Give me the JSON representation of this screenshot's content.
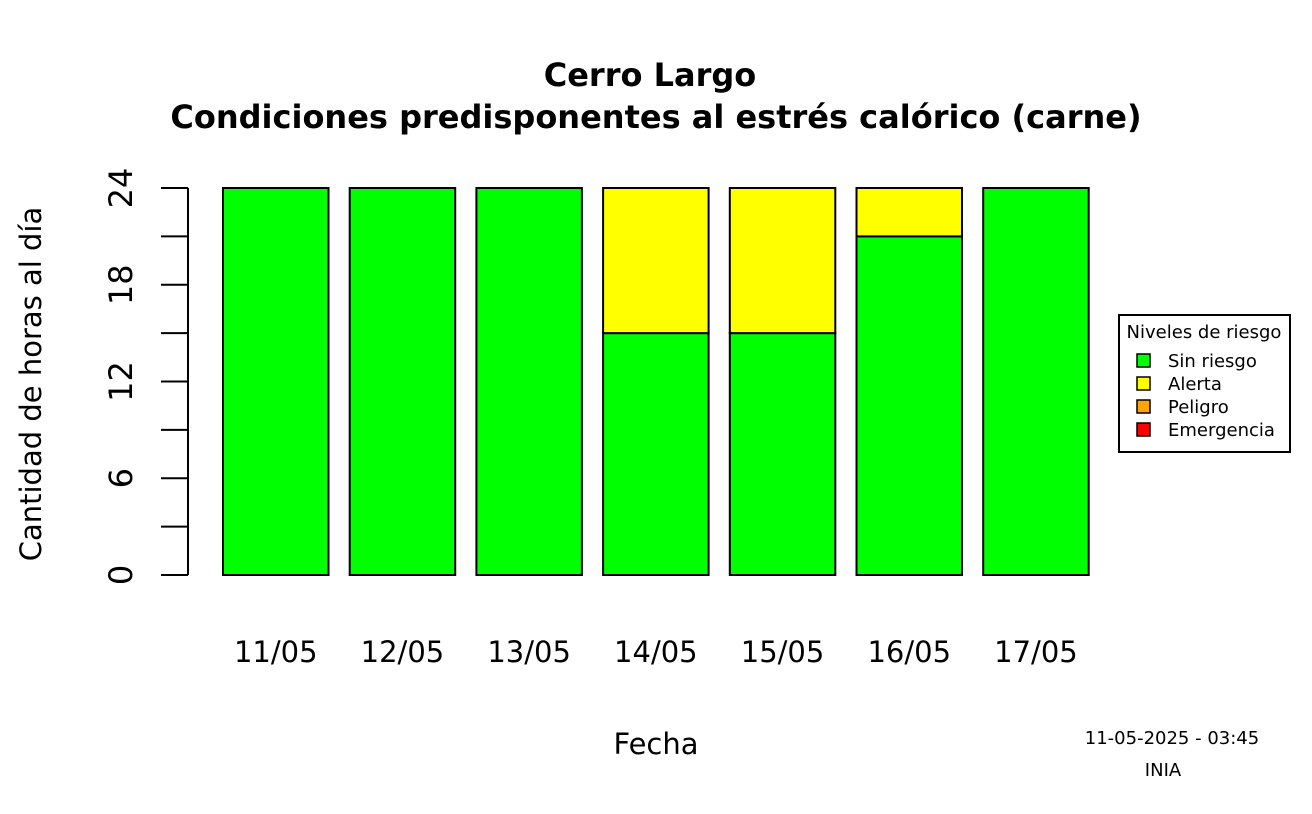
{
  "chart_data": {
    "type": "bar",
    "stacked": true,
    "title": "Cerro Largo",
    "subtitle": "Condiciones predisponentes al estrés calórico (carne)",
    "xlabel": "Fecha",
    "ylabel": "Cantidad de horas al día",
    "ylim": [
      0,
      24
    ],
    "yticks": [
      0,
      6,
      12,
      18,
      24
    ],
    "yminor_ticks": [
      3,
      9,
      15,
      21
    ],
    "categories": [
      "11/05",
      "12/05",
      "13/05",
      "14/05",
      "15/05",
      "16/05",
      "17/05"
    ],
    "series": [
      {
        "name": "Sin riesgo",
        "color": "#00ff00",
        "values": [
          24,
          24,
          24,
          15,
          15,
          21,
          24
        ]
      },
      {
        "name": "Alerta",
        "color": "#ffff00",
        "values": [
          0,
          0,
          0,
          9,
          9,
          3,
          0
        ]
      },
      {
        "name": "Peligro",
        "color": "#ffa500",
        "values": [
          0,
          0,
          0,
          0,
          0,
          0,
          0
        ]
      },
      {
        "name": "Emergencia",
        "color": "#ff0000",
        "values": [
          0,
          0,
          0,
          0,
          0,
          0,
          0
        ]
      }
    ],
    "legend": {
      "title": "Niveles de riesgo",
      "position": "right"
    },
    "grid": false
  },
  "footer": {
    "timestamp": "11-05-2025 - 03:45",
    "source": "INIA"
  }
}
